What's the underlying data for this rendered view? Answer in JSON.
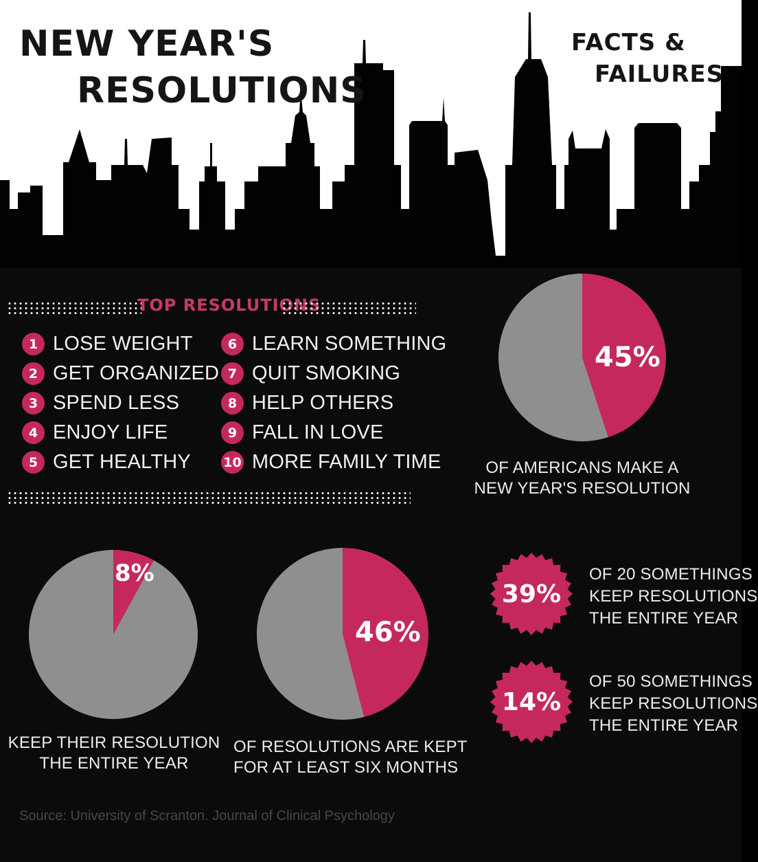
{
  "title": {
    "line1": "NEW YEAR'S",
    "line2": "RESOLUTIONS"
  },
  "subtitle": {
    "line1": "FACTS &",
    "line2": "FAILURES"
  },
  "top_resolutions": {
    "heading": "TOP RESOLUTIONS",
    "items": [
      {
        "num": "1",
        "label": "LOSE WEIGHT"
      },
      {
        "num": "2",
        "label": "GET ORGANIZED"
      },
      {
        "num": "3",
        "label": "SPEND LESS"
      },
      {
        "num": "4",
        "label": "ENJOY LIFE"
      },
      {
        "num": "5",
        "label": "GET HEALTHY"
      },
      {
        "num": "6",
        "label": "LEARN SOMETHING"
      },
      {
        "num": "7",
        "label": "QUIT SMOKING"
      },
      {
        "num": "8",
        "label": "HELP OTHERS"
      },
      {
        "num": "9",
        "label": "FALL IN LOVE"
      },
      {
        "num": "10",
        "label": "MORE FAMILY TIME"
      }
    ]
  },
  "chart_data": [
    {
      "type": "pie",
      "values": [
        45,
        55
      ],
      "colors": [
        "#c5295c",
        "#8f8f8f"
      ],
      "value_label": "45%",
      "caption": [
        "OF AMERICANS MAKE A",
        "NEW YEAR'S RESOLUTION"
      ]
    },
    {
      "type": "pie",
      "values": [
        8,
        92
      ],
      "colors": [
        "#c5295c",
        "#8f8f8f"
      ],
      "value_label": "8%",
      "caption": [
        "KEEP THEIR RESOLUTION",
        "THE ENTIRE YEAR"
      ]
    },
    {
      "type": "pie",
      "values": [
        46,
        54
      ],
      "colors": [
        "#c5295c",
        "#8f8f8f"
      ],
      "value_label": "46%",
      "caption": [
        "OF RESOLUTIONS ARE KEPT",
        "FOR AT LEAST SIX MONTHS"
      ]
    },
    {
      "type": "badge",
      "values": [
        39
      ],
      "value_label": "39%",
      "caption": [
        "OF 20 SOMETHINGS",
        "KEEP RESOLUTIONS",
        "THE ENTIRE YEAR"
      ]
    },
    {
      "type": "badge",
      "values": [
        14
      ],
      "value_label": "14%",
      "caption": [
        "OF 50 SOMETHINGS",
        "KEEP RESOLUTIONS",
        "THE ENTIRE YEAR"
      ]
    }
  ],
  "source": "Source: University of Scranton. Journal of Clinical Psychology",
  "colors": {
    "accent": "#c5295c",
    "gray": "#8f8f8f",
    "background": "#0b0b0b",
    "sky": "#ffffff",
    "silhouette": "#020202"
  }
}
